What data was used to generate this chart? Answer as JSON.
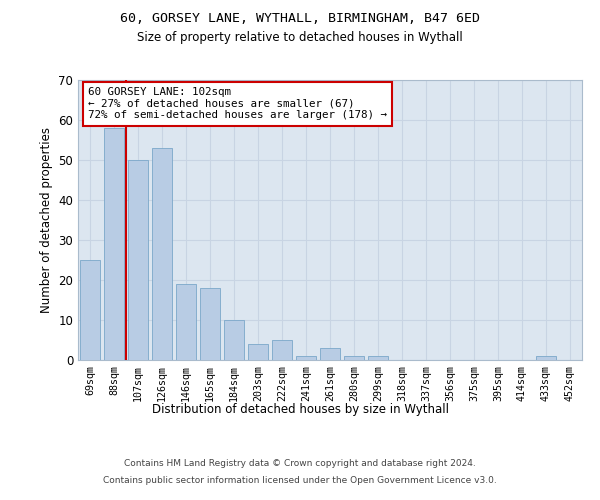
{
  "title1": "60, GORSEY LANE, WYTHALL, BIRMINGHAM, B47 6ED",
  "title2": "Size of property relative to detached houses in Wythall",
  "xlabel": "Distribution of detached houses by size in Wythall",
  "ylabel": "Number of detached properties",
  "footer1": "Contains HM Land Registry data © Crown copyright and database right 2024.",
  "footer2": "Contains public sector information licensed under the Open Government Licence v3.0.",
  "categories": [
    "69sqm",
    "88sqm",
    "107sqm",
    "126sqm",
    "146sqm",
    "165sqm",
    "184sqm",
    "203sqm",
    "222sqm",
    "241sqm",
    "261sqm",
    "280sqm",
    "299sqm",
    "318sqm",
    "337sqm",
    "356sqm",
    "375sqm",
    "395sqm",
    "414sqm",
    "433sqm",
    "452sqm"
  ],
  "values": [
    25,
    58,
    50,
    53,
    19,
    18,
    10,
    4,
    5,
    1,
    3,
    1,
    1,
    0,
    0,
    0,
    0,
    0,
    0,
    1,
    0
  ],
  "bar_color": "#b8cce4",
  "bar_edge_color": "#7ba7c9",
  "grid_color": "#c8d4e3",
  "background_color": "#dce6f0",
  "annotation_box_text": "60 GORSEY LANE: 102sqm\n← 27% of detached houses are smaller (67)\n72% of semi-detached houses are larger (178) →",
  "vline_x_index": 1.5,
  "vline_color": "#cc0000",
  "annotation_box_color": "#ffffff",
  "annotation_box_edge_color": "#cc0000",
  "ylim": [
    0,
    70
  ],
  "yticks": [
    0,
    10,
    20,
    30,
    40,
    50,
    60,
    70
  ]
}
